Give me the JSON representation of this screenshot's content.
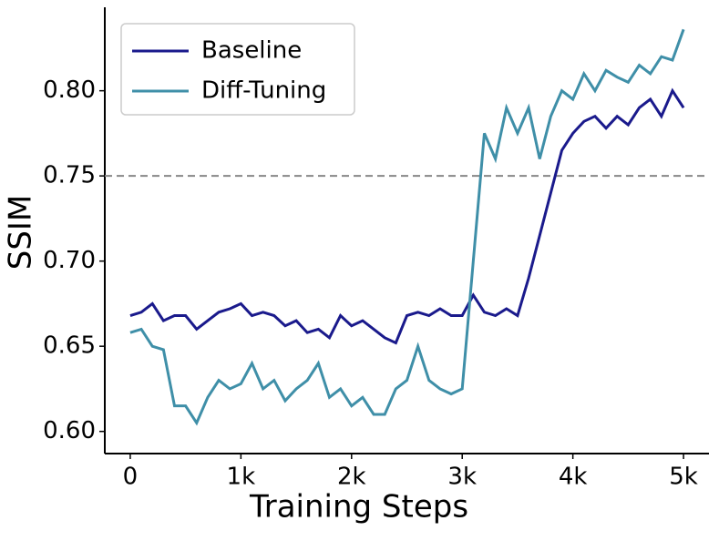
{
  "chart_data": {
    "type": "line",
    "xlabel": "Training Steps",
    "ylabel": "SSIM",
    "x": [
      0,
      100,
      200,
      300,
      400,
      500,
      600,
      700,
      800,
      900,
      1000,
      1100,
      1200,
      1300,
      1400,
      1500,
      1600,
      1700,
      1800,
      1900,
      2000,
      2100,
      2200,
      2300,
      2400,
      2500,
      2600,
      2700,
      2800,
      2900,
      3000,
      3100,
      3200,
      3300,
      3400,
      3500,
      3600,
      3700,
      3800,
      3900,
      4000,
      4100,
      4200,
      4300,
      4400,
      4500,
      4600,
      4700,
      4800,
      4900,
      5000
    ],
    "series": [
      {
        "name": "Baseline",
        "color": "#1a1a8c",
        "values": [
          0.668,
          0.67,
          0.675,
          0.665,
          0.668,
          0.668,
          0.66,
          0.665,
          0.67,
          0.672,
          0.675,
          0.668,
          0.67,
          0.668,
          0.662,
          0.665,
          0.658,
          0.66,
          0.655,
          0.668,
          0.662,
          0.665,
          0.66,
          0.655,
          0.652,
          0.668,
          0.67,
          0.668,
          0.672,
          0.668,
          0.668,
          0.68,
          0.67,
          0.668,
          0.672,
          0.668,
          0.69,
          0.715,
          0.74,
          0.765,
          0.775,
          0.782,
          0.785,
          0.778,
          0.785,
          0.78,
          0.79,
          0.795,
          0.785,
          0.8,
          0.79
        ]
      },
      {
        "name": "Diff-Tuning",
        "color": "#3f8fa8",
        "values": [
          0.658,
          0.66,
          0.65,
          0.648,
          0.615,
          0.615,
          0.605,
          0.62,
          0.63,
          0.625,
          0.628,
          0.64,
          0.625,
          0.63,
          0.618,
          0.625,
          0.63,
          0.64,
          0.62,
          0.625,
          0.615,
          0.62,
          0.61,
          0.61,
          0.625,
          0.63,
          0.65,
          0.63,
          0.625,
          0.622,
          0.625,
          0.7,
          0.775,
          0.76,
          0.79,
          0.775,
          0.79,
          0.76,
          0.785,
          0.8,
          0.795,
          0.81,
          0.8,
          0.812,
          0.808,
          0.805,
          0.815,
          0.81,
          0.82,
          0.818,
          0.836
        ]
      }
    ],
    "hline": 0.75,
    "xlim": [
      -230,
      5230
    ],
    "ylim": [
      0.587,
      0.849
    ],
    "xticks": [
      0,
      {
        "value": 1000,
        "label": "1k"
      },
      {
        "value": 2000,
        "label": "2k"
      },
      {
        "value": 3000,
        "label": "3k"
      },
      {
        "value": 4000,
        "label": "4k"
      },
      {
        "value": 5000,
        "label": "5k"
      }
    ],
    "yticks": [
      {
        "value": 0.6,
        "label": "0.60"
      },
      {
        "value": 0.65,
        "label": "0.65"
      },
      {
        "value": 0.7,
        "label": "0.70"
      },
      {
        "value": 0.75,
        "label": "0.75"
      },
      {
        "value": 0.8,
        "label": "0.80"
      }
    ],
    "legend": "upper left",
    "grid": false
  }
}
